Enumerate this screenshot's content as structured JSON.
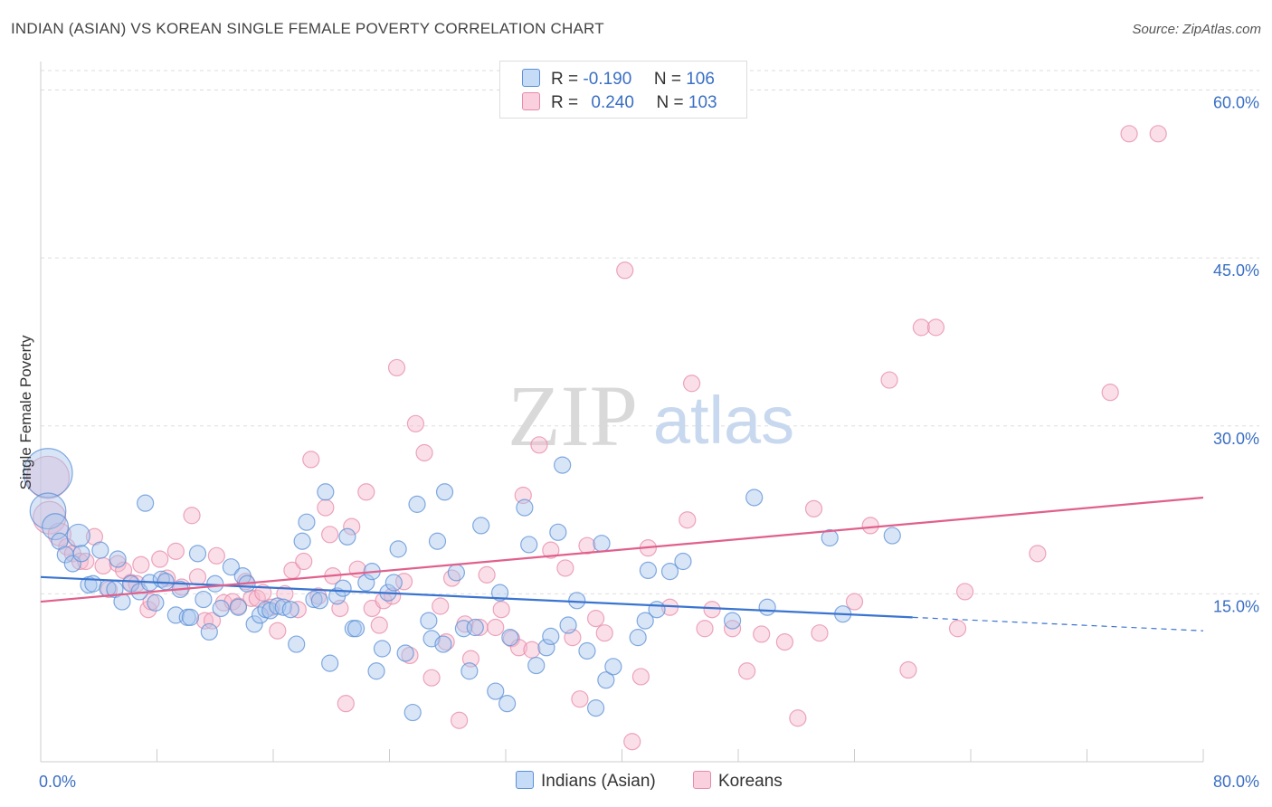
{
  "header": {
    "title": "INDIAN (ASIAN) VS KOREAN SINGLE FEMALE POVERTY CORRELATION CHART",
    "source": "Source: ZipAtlas.com"
  },
  "watermark": {
    "zip": "ZIP",
    "atlas": "atlas"
  },
  "legend_top": {
    "rows": [
      {
        "r_label": "R =",
        "r_value": "-0.190",
        "n_label": "N =",
        "n_value": "106",
        "color": "#aac8f0"
      },
      {
        "r_label": "R =",
        "r_value": "0.240",
        "n_label": "N =",
        "n_value": "103",
        "color": "#f5b8cc"
      }
    ]
  },
  "legend_bottom": {
    "items": [
      {
        "label": "Indians (Asian)",
        "color": "#aac8f0"
      },
      {
        "label": "Koreans",
        "color": "#f5b8cc"
      }
    ]
  },
  "colors": {
    "blue_fill": "#a9c6ee",
    "blue_stroke": "#5a8fd6",
    "blue_line": "#3a74d0",
    "pink_fill": "#f6b9cc",
    "pink_stroke": "#e58aa8",
    "pink_line": "#e0608c",
    "axis_label": "#3a6fc4"
  },
  "chart_data": {
    "type": "scatter",
    "title": "INDIAN (ASIAN) VS KOREAN SINGLE FEMALE POVERTY CORRELATION CHART",
    "xlabel": "",
    "ylabel": "Single Female Poverty",
    "xlim": [
      0,
      80
    ],
    "ylim": [
      0,
      61.5
    ],
    "x_tick_labels": [
      "0.0%",
      "80.0%"
    ],
    "y_ticks": [
      15,
      30,
      45,
      60
    ],
    "y_tick_labels": [
      "15.0%",
      "30.0%",
      "45.0%",
      "60.0%"
    ],
    "grid": true,
    "legend_position": "top-center",
    "series": [
      {
        "name": "Indians (Asian)",
        "r": -0.19,
        "n": 106,
        "trend": {
          "x0": 0,
          "y0": 16.5,
          "x1": 60,
          "y1": 12.9,
          "dash_to_x": 80,
          "dash_to_y": 11.7
        },
        "points": [
          [
            0.5,
            25.8,
            3
          ],
          [
            0.5,
            22.4,
            2.2
          ],
          [
            1,
            21.0,
            1.6
          ],
          [
            1.3,
            19.7,
            1
          ],
          [
            1.7,
            18.5,
            1
          ],
          [
            2.2,
            17.7,
            1
          ],
          [
            2.6,
            20.2,
            1.4
          ],
          [
            2.8,
            18.6,
            1
          ],
          [
            3.3,
            15.8,
            1
          ],
          [
            3.6,
            15.9,
            1
          ],
          [
            4.1,
            18.9,
            1
          ],
          [
            4.6,
            15.5,
            1
          ],
          [
            5.1,
            15.4,
            1
          ],
          [
            5.3,
            18.1,
            1
          ],
          [
            5.6,
            14.3,
            1
          ],
          [
            6.2,
            15.9,
            1
          ],
          [
            6.8,
            15.2,
            1
          ],
          [
            7.2,
            23.1,
            1
          ],
          [
            7.5,
            16.0,
            1
          ],
          [
            7.9,
            14.2,
            1
          ],
          [
            8.3,
            16.3,
            1
          ],
          [
            8.6,
            16.1,
            1
          ],
          [
            9.3,
            13.1,
            1
          ],
          [
            9.6,
            15.4,
            1
          ],
          [
            10.1,
            12.9,
            1
          ],
          [
            10.3,
            12.9,
            1
          ],
          [
            10.8,
            18.6,
            1
          ],
          [
            11.2,
            14.5,
            1
          ],
          [
            11.6,
            11.6,
            1
          ],
          [
            12.0,
            15.9,
            1
          ],
          [
            12.4,
            13.7,
            1
          ],
          [
            13.1,
            17.4,
            1
          ],
          [
            13.6,
            13.8,
            1
          ],
          [
            13.9,
            16.6,
            1
          ],
          [
            14.2,
            15.9,
            1
          ],
          [
            14.7,
            12.3,
            1
          ],
          [
            15.1,
            13.1,
            1
          ],
          [
            15.5,
            13.6,
            1
          ],
          [
            15.8,
            13.5,
            1
          ],
          [
            16.3,
            13.9,
            1
          ],
          [
            16.7,
            13.8,
            1
          ],
          [
            17.2,
            13.6,
            1
          ],
          [
            17.6,
            10.5,
            1
          ],
          [
            18.0,
            19.7,
            1
          ],
          [
            18.3,
            21.4,
            1
          ],
          [
            18.8,
            14.5,
            1
          ],
          [
            19.2,
            14.4,
            1
          ],
          [
            19.6,
            24.1,
            1
          ],
          [
            19.9,
            8.8,
            1
          ],
          [
            20.4,
            14.8,
            1
          ],
          [
            20.8,
            15.5,
            1
          ],
          [
            21.1,
            20.1,
            1
          ],
          [
            21.5,
            11.9,
            1
          ],
          [
            21.7,
            11.9,
            1
          ],
          [
            22.4,
            16.0,
            1
          ],
          [
            22.8,
            17.0,
            1
          ],
          [
            23.1,
            8.1,
            1
          ],
          [
            23.5,
            10.1,
            1
          ],
          [
            23.9,
            15.1,
            1
          ],
          [
            24.3,
            16.0,
            1
          ],
          [
            24.6,
            19.0,
            1
          ],
          [
            25.1,
            9.7,
            1
          ],
          [
            25.6,
            4.4,
            1
          ],
          [
            25.9,
            23.0,
            1
          ],
          [
            26.7,
            12.6,
            1
          ],
          [
            26.9,
            11.0,
            1
          ],
          [
            27.3,
            19.7,
            1
          ],
          [
            27.7,
            10.5,
            1
          ],
          [
            27.8,
            24.1,
            1
          ],
          [
            28.6,
            16.9,
            1
          ],
          [
            29.1,
            11.9,
            1
          ],
          [
            29.5,
            8.1,
            1
          ],
          [
            29.9,
            12.0,
            1
          ],
          [
            30.3,
            21.1,
            1
          ],
          [
            31.3,
            6.3,
            1
          ],
          [
            31.6,
            15.1,
            1
          ],
          [
            32.1,
            5.2,
            1
          ],
          [
            32.3,
            11.1,
            1
          ],
          [
            33.3,
            22.7,
            1
          ],
          [
            33.6,
            19.4,
            1
          ],
          [
            34.1,
            8.6,
            1
          ],
          [
            34.8,
            10.2,
            1
          ],
          [
            35.1,
            11.2,
            1
          ],
          [
            35.6,
            20.5,
            1
          ],
          [
            35.9,
            26.5,
            1
          ],
          [
            36.3,
            12.2,
            1
          ],
          [
            36.9,
            14.4,
            1
          ],
          [
            37.6,
            9.9,
            1
          ],
          [
            38.2,
            4.8,
            1
          ],
          [
            38.6,
            19.5,
            1
          ],
          [
            38.9,
            7.3,
            1
          ],
          [
            39.4,
            8.5,
            1
          ],
          [
            41.1,
            11.1,
            1
          ],
          [
            41.6,
            12.6,
            1
          ],
          [
            41.8,
            17.1,
            1
          ],
          [
            42.4,
            13.6,
            1
          ],
          [
            43.3,
            17.0,
            1
          ],
          [
            44.2,
            17.9,
            1
          ],
          [
            47.6,
            12.6,
            1
          ],
          [
            49.1,
            23.6,
            1
          ],
          [
            54.3,
            20.0,
            1
          ],
          [
            55.2,
            13.2,
            1
          ],
          [
            58.6,
            20.2,
            1
          ],
          [
            50.0,
            13.8,
            1
          ]
        ]
      },
      {
        "name": "Koreans",
        "r": 0.24,
        "n": 103,
        "trend": {
          "x0": 0,
          "y0": 14.3,
          "x1": 80,
          "y1": 23.6
        },
        "points": [
          [
            0.5,
            25.4,
            2.6
          ],
          [
            0.6,
            21.8,
            2
          ],
          [
            1.3,
            20.3,
            1.4
          ],
          [
            1.8,
            19.2,
            1
          ],
          [
            2.2,
            18.6,
            1
          ],
          [
            2.7,
            17.9,
            1
          ],
          [
            3.1,
            17.9,
            1
          ],
          [
            3.7,
            20.1,
            1
          ],
          [
            4.3,
            17.5,
            1
          ],
          [
            4.7,
            15.4,
            1
          ],
          [
            5.3,
            17.7,
            1
          ],
          [
            5.7,
            17.1,
            1
          ],
          [
            6.2,
            16.0,
            1
          ],
          [
            6.6,
            15.9,
            1
          ],
          [
            6.9,
            17.6,
            1
          ],
          [
            7.4,
            13.6,
            1
          ],
          [
            7.6,
            14.3,
            1
          ],
          [
            8.2,
            18.1,
            1
          ],
          [
            8.7,
            16.4,
            1
          ],
          [
            9.3,
            18.8,
            1
          ],
          [
            9.7,
            15.6,
            1
          ],
          [
            10.4,
            22.0,
            1
          ],
          [
            10.8,
            16.5,
            1
          ],
          [
            11.3,
            12.6,
            1
          ],
          [
            11.8,
            12.6,
            1
          ],
          [
            12.1,
            18.4,
            1
          ],
          [
            12.6,
            14.2,
            1
          ],
          [
            13.2,
            14.3,
            1
          ],
          [
            13.6,
            13.9,
            1
          ],
          [
            14.1,
            16.1,
            1
          ],
          [
            14.5,
            14.6,
            1
          ],
          [
            14.9,
            14.6,
            1
          ],
          [
            15.3,
            15.1,
            1
          ],
          [
            15.9,
            13.8,
            1
          ],
          [
            16.3,
            11.7,
            1
          ],
          [
            16.8,
            15.0,
            1
          ],
          [
            17.3,
            17.1,
            1
          ],
          [
            17.7,
            13.6,
            1
          ],
          [
            18.1,
            17.9,
            1
          ],
          [
            18.6,
            27.0,
            1
          ],
          [
            19.1,
            14.8,
            1
          ],
          [
            19.6,
            22.7,
            1
          ],
          [
            19.9,
            20.3,
            1
          ],
          [
            20.1,
            16.6,
            1
          ],
          [
            20.6,
            13.7,
            1
          ],
          [
            21.0,
            5.2,
            1
          ],
          [
            21.4,
            21.0,
            1
          ],
          [
            21.8,
            17.2,
            1
          ],
          [
            22.4,
            24.1,
            1
          ],
          [
            22.8,
            13.7,
            1
          ],
          [
            23.3,
            12.2,
            1
          ],
          [
            23.6,
            14.4,
            1
          ],
          [
            24.2,
            14.8,
            1
          ],
          [
            24.5,
            35.2,
            1
          ],
          [
            25.0,
            16.1,
            1
          ],
          [
            25.4,
            9.5,
            1
          ],
          [
            25.8,
            30.2,
            1
          ],
          [
            26.4,
            27.6,
            1
          ],
          [
            26.9,
            7.5,
            1
          ],
          [
            27.5,
            13.9,
            1
          ],
          [
            27.9,
            10.7,
            1
          ],
          [
            28.3,
            16.4,
            1
          ],
          [
            28.8,
            3.7,
            1
          ],
          [
            29.2,
            12.3,
            1
          ],
          [
            29.6,
            9.2,
            1
          ],
          [
            30.2,
            12.0,
            1
          ],
          [
            30.7,
            16.7,
            1
          ],
          [
            31.3,
            12.0,
            1
          ],
          [
            31.7,
            13.6,
            1
          ],
          [
            32.4,
            11.0,
            1
          ],
          [
            32.9,
            10.2,
            1
          ],
          [
            33.2,
            23.8,
            1
          ],
          [
            33.8,
            10.0,
            1
          ],
          [
            34.3,
            28.3,
            1
          ],
          [
            35.1,
            18.9,
            1
          ],
          [
            36.1,
            17.3,
            1
          ],
          [
            36.6,
            11.1,
            1
          ],
          [
            37.1,
            5.6,
            1
          ],
          [
            37.6,
            19.3,
            1
          ],
          [
            38.2,
            12.8,
            1
          ],
          [
            38.8,
            11.5,
            1
          ],
          [
            40.2,
            43.9,
            1
          ],
          [
            40.7,
            1.8,
            1
          ],
          [
            41.3,
            7.6,
            1
          ],
          [
            41.8,
            19.1,
            1
          ],
          [
            43.3,
            13.8,
            1
          ],
          [
            44.5,
            21.6,
            1
          ],
          [
            44.8,
            33.8,
            1
          ],
          [
            45.7,
            11.9,
            1
          ],
          [
            46.2,
            13.6,
            1
          ],
          [
            47.6,
            11.9,
            1
          ],
          [
            48.6,
            8.1,
            1
          ],
          [
            49.6,
            11.4,
            1
          ],
          [
            51.2,
            10.7,
            1
          ],
          [
            52.1,
            3.9,
            1
          ],
          [
            53.2,
            22.6,
            1
          ],
          [
            53.6,
            11.5,
            1
          ],
          [
            56.0,
            14.3,
            1
          ],
          [
            57.1,
            21.1,
            1
          ],
          [
            58.4,
            34.1,
            1
          ],
          [
            59.7,
            8.2,
            1
          ],
          [
            60.6,
            38.8,
            1
          ],
          [
            61.6,
            38.8,
            1
          ],
          [
            63.1,
            11.9,
            1
          ],
          [
            63.6,
            15.2,
            1
          ],
          [
            68.6,
            18.6,
            1
          ],
          [
            73.6,
            33.0,
            1
          ],
          [
            74.9,
            56.1,
            1
          ],
          [
            76.9,
            56.1,
            1
          ]
        ]
      }
    ]
  }
}
